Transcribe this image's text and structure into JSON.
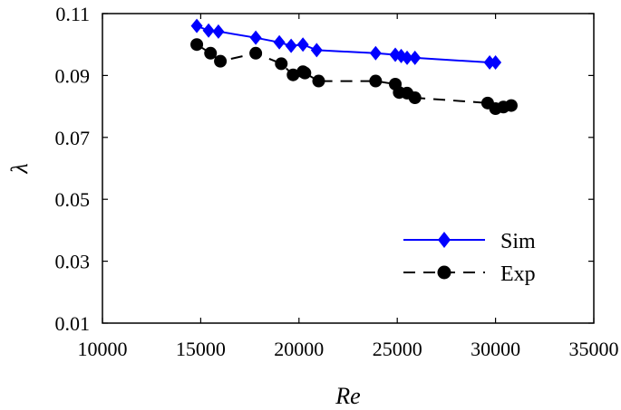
{
  "chart_data": {
    "type": "line",
    "title": "",
    "xlabel": "Re",
    "ylabel": "λ",
    "xlim": [
      10000,
      35000
    ],
    "ylim": [
      0.01,
      0.11
    ],
    "xticks": [
      10000,
      15000,
      20000,
      25000,
      30000,
      35000
    ],
    "yticks": [
      0.01,
      0.03,
      0.05,
      0.07,
      0.09,
      0.11
    ],
    "x_tick_labels": [
      "10000",
      "15000",
      "20000",
      "25000",
      "30000",
      "35000"
    ],
    "y_tick_labels": [
      "0.01",
      "0.03",
      "0.05",
      "0.07",
      "0.09",
      "0.11"
    ],
    "grid": false,
    "legend": {
      "position": "bottom-right"
    },
    "series": [
      {
        "name": "Sim",
        "color": "#0000ff",
        "marker": "diamond",
        "line_style": "solid",
        "x": [
          14800,
          15400,
          15900,
          17800,
          19000,
          19600,
          20200,
          20900,
          23900,
          24900,
          25200,
          25500,
          25900,
          29700,
          30000
        ],
        "y": [
          0.106,
          0.1045,
          0.1042,
          0.1022,
          0.1007,
          0.0996,
          0.1,
          0.0982,
          0.0972,
          0.0967,
          0.0963,
          0.0957,
          0.0957,
          0.0942,
          0.0942
        ]
      },
      {
        "name": "Exp",
        "color": "#000000",
        "marker": "circle",
        "line_style": "dashed",
        "x": [
          14800,
          15500,
          16000,
          17800,
          19100,
          19700,
          20200,
          20300,
          21000,
          23900,
          24900,
          25100,
          25500,
          25900,
          29600,
          30000,
          30400,
          30800
        ],
        "y": [
          0.1,
          0.0972,
          0.0946,
          0.0972,
          0.0938,
          0.0902,
          0.0912,
          0.0908,
          0.0882,
          0.0882,
          0.0872,
          0.0845,
          0.0843,
          0.0828,
          0.0811,
          0.0793,
          0.0798,
          0.0803
        ]
      }
    ]
  }
}
